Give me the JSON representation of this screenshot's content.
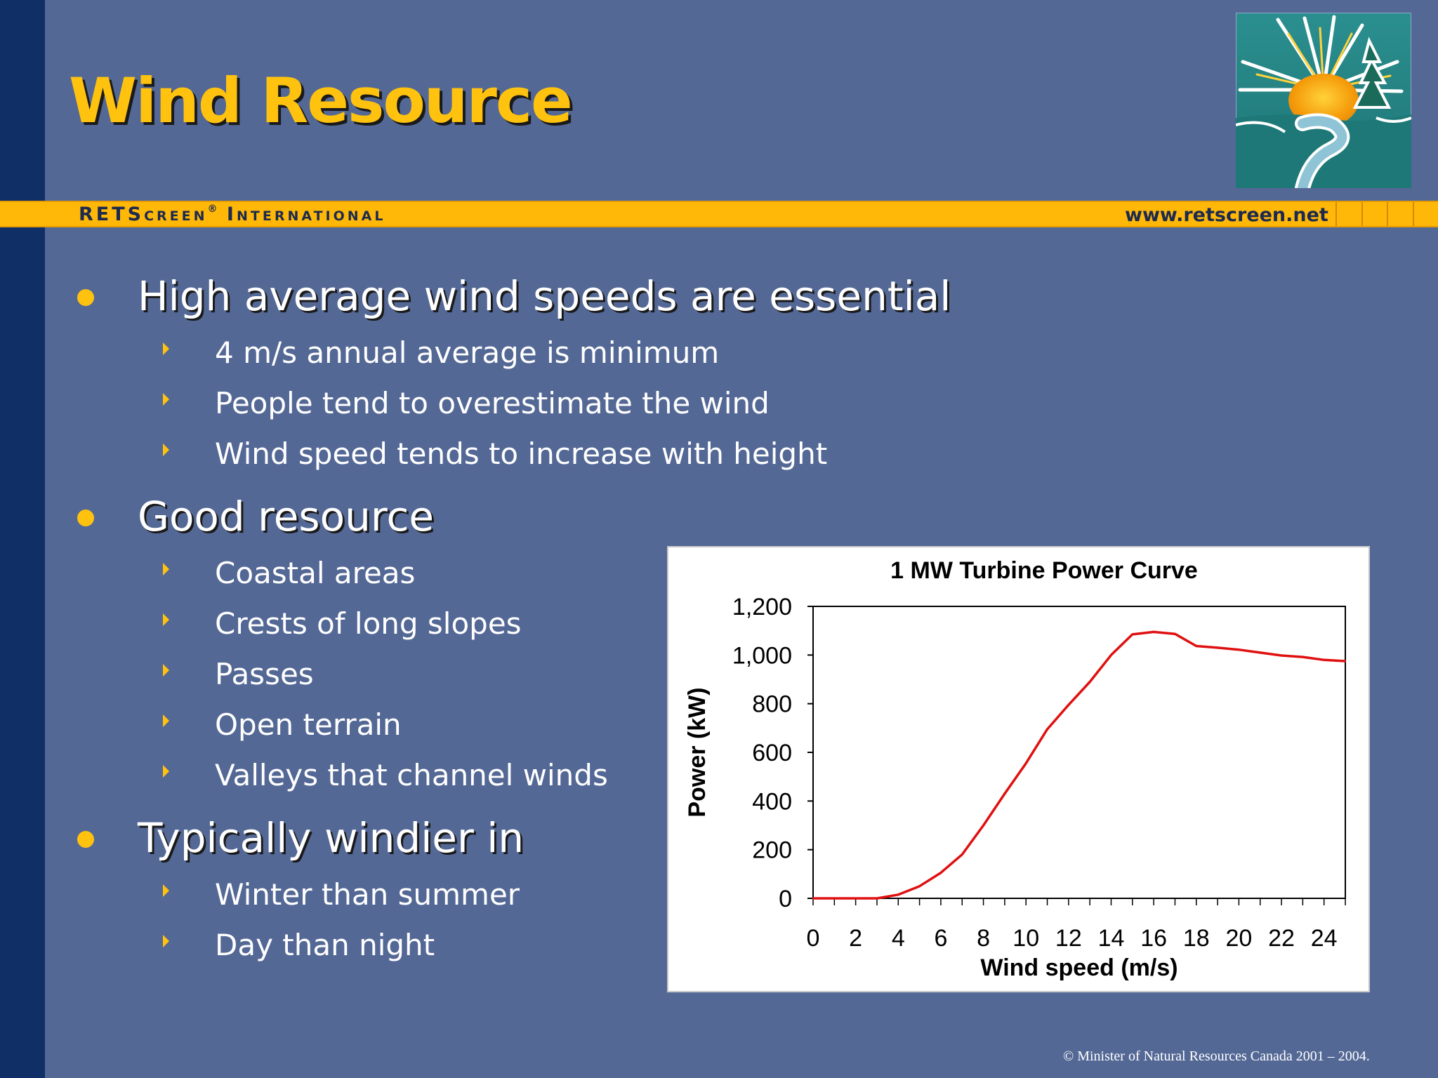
{
  "slide": {
    "title": "Wind Resource",
    "banner": {
      "left_main": "RETScreen",
      "left_reg": "®",
      "left_suffix": " International",
      "right_url": "www.retscreen.net"
    },
    "bullets": [
      {
        "text": "High average wind speeds are essential",
        "subs": [
          "4 m/s annual average is minimum",
          "People tend to overestimate the wind",
          "Wind speed tends to increase with height"
        ]
      },
      {
        "text": "Good resource",
        "subs": [
          "Coastal areas",
          "Crests of long slopes",
          "Passes",
          "Open terrain",
          "Valleys that channel winds"
        ]
      },
      {
        "text": "Typically windier in",
        "subs": [
          "Winter than summer",
          "Day than night"
        ]
      }
    ],
    "copyright": "© Minister of Natural Resources Canada 2001 – 2004.",
    "colors": {
      "background": "#546896",
      "left_bar": "#0f2f66",
      "accent": "#ffc20e",
      "banner": "#ffb808",
      "curve": "#e01010"
    }
  },
  "chart_data": {
    "type": "line",
    "title": "1 MW Turbine Power Curve",
    "xlabel": "Wind speed (m/s)",
    "ylabel": "Power (kW)",
    "xlim": [
      0,
      25
    ],
    "ylim": [
      0,
      1200
    ],
    "x_ticks": [
      "0",
      "2",
      "4",
      "6",
      "8",
      "10",
      "12",
      "14",
      "16",
      "18",
      "20",
      "22",
      "24"
    ],
    "y_ticks": [
      "0",
      "200",
      "400",
      "600",
      "800",
      "1,000",
      "1,200"
    ],
    "series": [
      {
        "x": [
          0,
          1,
          2,
          3,
          4,
          5,
          6,
          7,
          8,
          9,
          10,
          11,
          12,
          13,
          14,
          15,
          16,
          17,
          18,
          19,
          20,
          21,
          22,
          23,
          24,
          25
        ],
        "values": [
          0,
          0,
          0,
          0,
          15,
          50,
          105,
          180,
          300,
          430,
          555,
          695,
          795,
          890,
          1000,
          1085,
          1095,
          1087,
          1037,
          1030,
          1022,
          1010,
          998,
          992,
          980,
          975
        ]
      }
    ]
  }
}
